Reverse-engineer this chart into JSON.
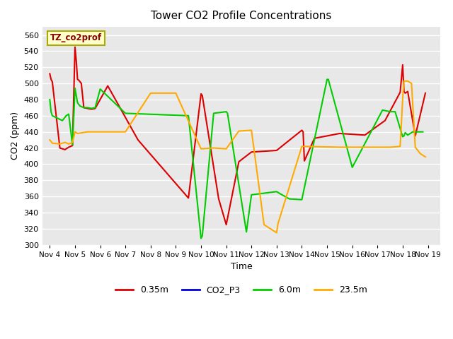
{
  "title": "Tower CO2 Profile Concentrations",
  "xlabel": "Time",
  "ylabel": "CO2 (ppm)",
  "ylim": [
    300,
    570
  ],
  "yticks": [
    300,
    320,
    340,
    360,
    380,
    400,
    420,
    440,
    460,
    480,
    500,
    520,
    540,
    560
  ],
  "bg_color": "#ffffff",
  "plot_bg_color": "#e8e8e8",
  "watermark": "TZ_co2prof",
  "legend_entries": [
    "0.35m",
    "CO2_P3",
    "6.0m",
    "23.5m"
  ],
  "line_colors": [
    "#dd0000",
    "#0000dd",
    "#00cc00",
    "#ffaa00"
  ],
  "x_labels": [
    "Nov 4",
    "Nov 5",
    "Nov 6",
    "Nov 7",
    "Nov 8",
    "Nov 9",
    "Nov 10",
    "Nov 11",
    "Nov 12",
    "Nov 13",
    "Nov 14",
    "Nov 15",
    "Nov 16",
    "Nov 17",
    "Nov 18",
    "Nov 19"
  ],
  "x_values": [
    4,
    5,
    6,
    7,
    8,
    9,
    10,
    11,
    12,
    13,
    14,
    15,
    16,
    17,
    18,
    19
  ],
  "series_035m": {
    "x": [
      4.0,
      4.05,
      4.1,
      4.4,
      4.6,
      4.75,
      4.9,
      5.0,
      5.05,
      5.1,
      5.15,
      5.25,
      5.35,
      5.5,
      5.65,
      5.8,
      6.3,
      7.5,
      9.5,
      10.0,
      10.05,
      10.7,
      11.0,
      11.5,
      12.0,
      13.0,
      14.0,
      14.05,
      14.1,
      14.5,
      15.5,
      16.5,
      17.3,
      17.9,
      18.0,
      18.05,
      18.1,
      18.2,
      18.5,
      18.9
    ],
    "y": [
      512,
      505,
      502,
      420,
      418,
      421,
      423,
      545,
      528,
      505,
      504,
      500,
      470,
      469,
      468,
      469,
      497,
      430,
      358,
      487,
      485,
      357,
      325,
      403,
      415,
      417,
      442,
      440,
      404,
      432,
      438,
      436,
      454,
      489,
      523,
      490,
      488,
      490,
      435,
      488
    ]
  },
  "series_co2p3": {
    "x": [],
    "y": []
  },
  "series_6m": {
    "x": [
      4.0,
      4.05,
      4.1,
      4.3,
      4.5,
      4.65,
      4.75,
      4.9,
      5.0,
      5.1,
      5.15,
      5.2,
      5.35,
      5.5,
      5.65,
      5.8,
      6.0,
      7.0,
      9.5,
      10.0,
      10.05,
      10.5,
      11.0,
      11.05,
      11.8,
      12.0,
      13.0,
      13.1,
      13.5,
      14.0,
      15.0,
      15.05,
      16.0,
      17.2,
      17.5,
      17.7,
      18.0,
      18.05,
      18.1,
      18.2,
      18.4,
      18.6,
      18.8
    ],
    "y": [
      480,
      465,
      460,
      457,
      454,
      460,
      462,
      424,
      494,
      476,
      474,
      472,
      470,
      470,
      469,
      470,
      493,
      463,
      460,
      308,
      311,
      463,
      465,
      463,
      316,
      362,
      366,
      364,
      357,
      356,
      505,
      505,
      396,
      467,
      465,
      465,
      434,
      435,
      439,
      436,
      440,
      440,
      440
    ]
  },
  "series_235m": {
    "x": [
      4.0,
      4.05,
      4.1,
      4.4,
      4.6,
      4.75,
      4.9,
      5.0,
      5.1,
      5.5,
      6.0,
      7.0,
      8.0,
      9.0,
      10.0,
      10.5,
      11.0,
      11.5,
      12.0,
      12.5,
      13.0,
      13.05,
      14.0,
      15.5,
      16.5,
      17.0,
      17.5,
      17.9,
      18.0,
      18.05,
      18.2,
      18.35,
      18.5,
      18.7,
      18.9
    ],
    "y": [
      430,
      428,
      426,
      425,
      427,
      425,
      427,
      440,
      438,
      440,
      440,
      440,
      488,
      488,
      419,
      420,
      419,
      441,
      442,
      325,
      315,
      326,
      422,
      421,
      421,
      421,
      421,
      422,
      481,
      503,
      503,
      500,
      421,
      413,
      409
    ]
  }
}
